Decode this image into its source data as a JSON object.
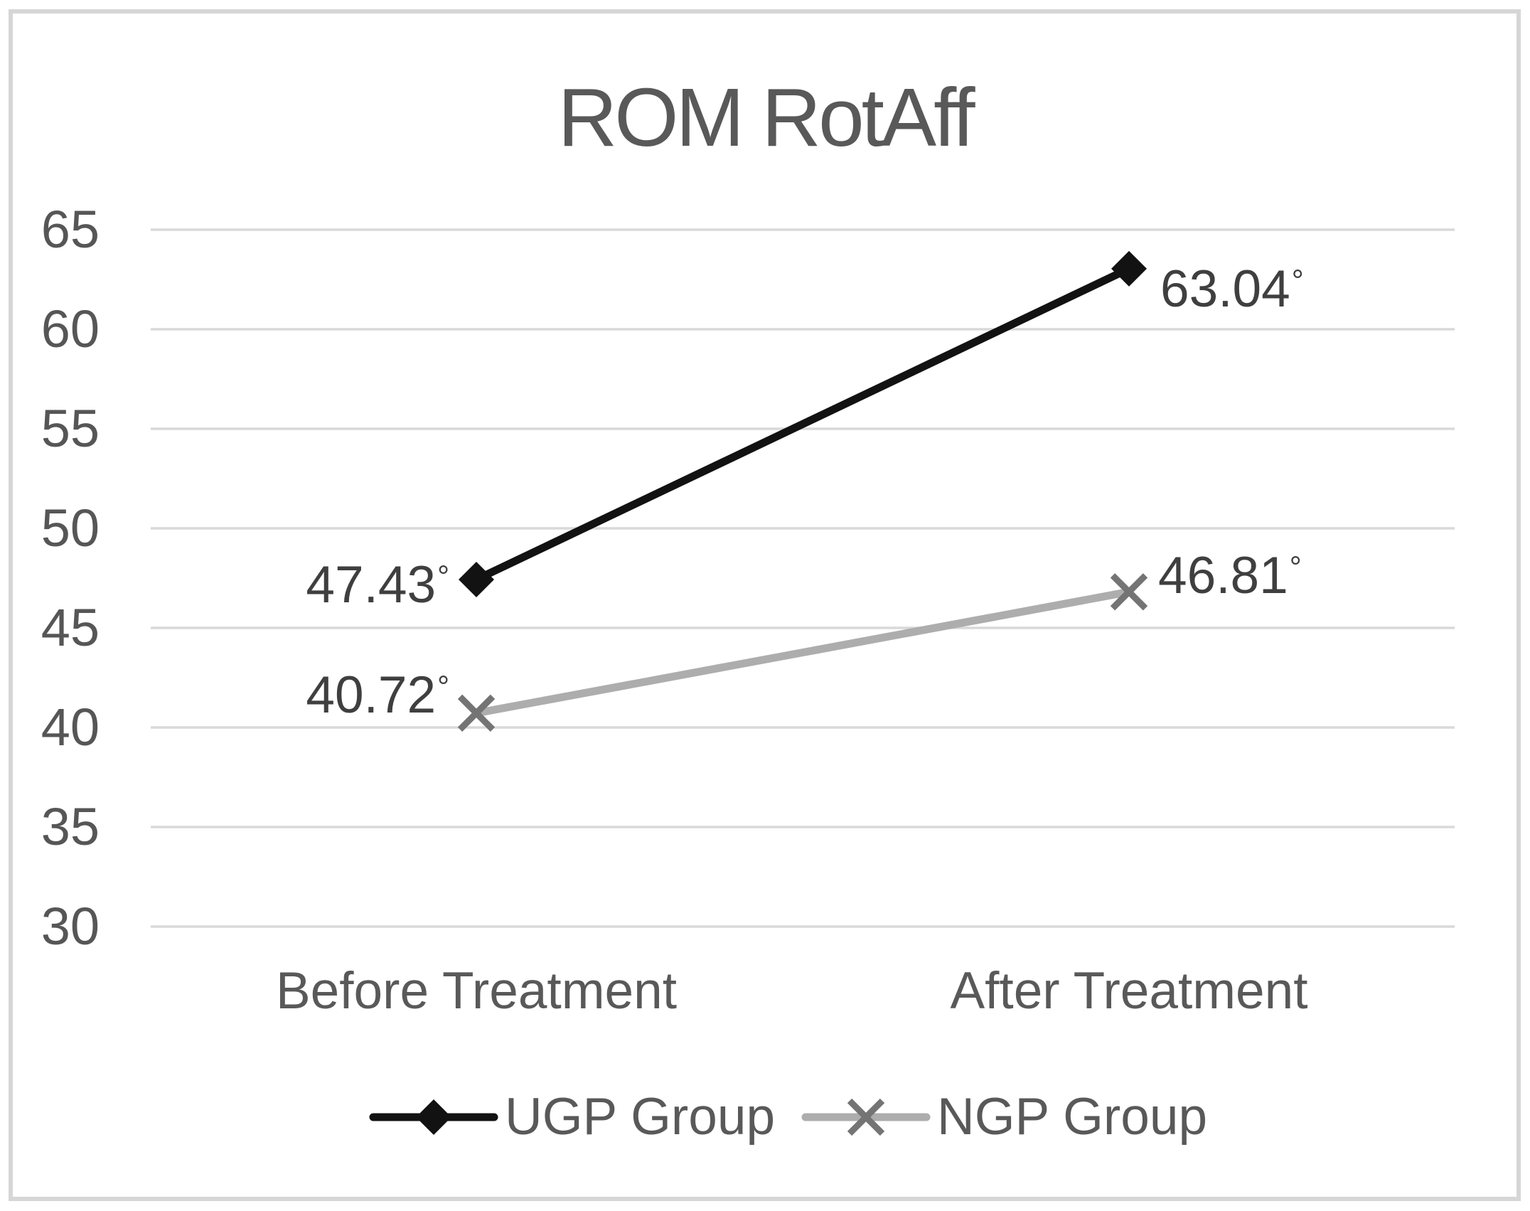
{
  "chart_data": {
    "type": "line",
    "title": "ROM RotAff",
    "categories": [
      "Before Treatment",
      "After Treatment"
    ],
    "series": [
      {
        "name": "UGP Group",
        "values": [
          47.43,
          63.04
        ],
        "point_labels": [
          "47.43°",
          "63.04°"
        ],
        "color": "#121212",
        "marker": "diamond",
        "marker_color": "#121212"
      },
      {
        "name": "NGP Group",
        "values": [
          40.72,
          46.81
        ],
        "point_labels": [
          "40.72°",
          "46.81°"
        ],
        "color": "#adadad",
        "marker": "x",
        "marker_color": "#747474"
      }
    ],
    "y_axis": {
      "min": 30,
      "max": 65,
      "step": 5,
      "ticks": [
        65,
        60,
        55,
        50,
        45,
        40,
        35,
        30
      ]
    },
    "grid": true,
    "grid_color": "#d9d9d9",
    "axis_text_color": "#595959",
    "data_label_color": "#3f3f3f",
    "frame_color": "#d6d6d6",
    "legend_position": "bottom",
    "value_unit": "°"
  }
}
